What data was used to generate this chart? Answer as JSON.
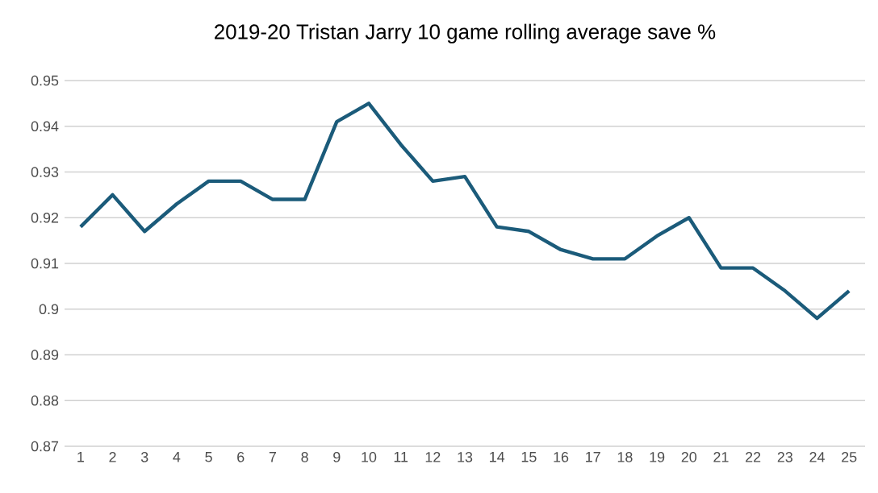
{
  "chart_data": {
    "type": "line",
    "title": "2019-20 Tristan Jarry 10 game rolling average save %",
    "categories": [
      "1",
      "2",
      "3",
      "4",
      "5",
      "6",
      "7",
      "8",
      "9",
      "10",
      "11",
      "12",
      "13",
      "14",
      "15",
      "16",
      "17",
      "18",
      "19",
      "20",
      "21",
      "22",
      "23",
      "24",
      "25"
    ],
    "series": [
      {
        "color": "#1b5b7a",
        "values": [
          0.918,
          0.925,
          0.917,
          0.923,
          0.928,
          0.928,
          0.924,
          0.924,
          0.941,
          0.945,
          0.936,
          0.928,
          0.929,
          0.918,
          0.917,
          0.913,
          0.911,
          0.911,
          0.916,
          0.92,
          0.909,
          0.909,
          0.904,
          0.898,
          0.904
        ]
      }
    ],
    "ylim": [
      0.87,
      0.95
    ],
    "yticks": [
      0.87,
      0.88,
      0.89,
      0.9,
      0.91,
      0.92,
      0.93,
      0.94,
      0.95
    ],
    "grid": "y",
    "marker": "none",
    "line_style": "solid"
  }
}
